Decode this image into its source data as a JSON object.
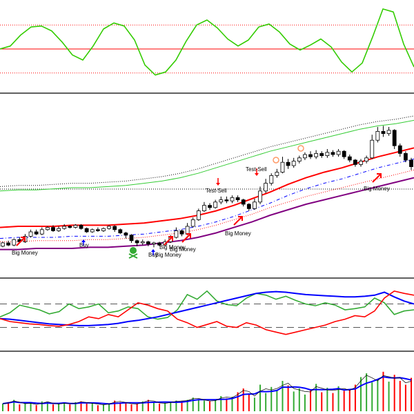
{
  "colors": {
    "background": "#ffffff",
    "pane_border": "#000000",
    "oscillator_line": "#33cc00",
    "oscillator_zero": "#ff0000",
    "oscillator_bands": "#ff0000",
    "candle_up": "#ffffff",
    "candle_down": "#000000",
    "upper_band_dotted": "#000000",
    "middle_band_green": "#33cc33",
    "red_band": "#ff0000",
    "blue_band_dashed": "#0000ff",
    "red_band_dotted": "#ff0000",
    "purple_band": "#800080",
    "signal_red_arrow": "#ff0000",
    "signal_blue_arrow": "#0000ff",
    "skull_icon": "#33aa33",
    "volume_up": "#33aa33",
    "volume_down": "#ff0000",
    "volume_ma": "#0000ff",
    "volume_ma2": "#000000",
    "ind_green": "#33aa33",
    "ind_blue": "#0000ff",
    "ind_red": "#ff0000",
    "ind_levels": "#555555",
    "icon_sell": "#ff9966"
  },
  "chart_data": [
    {
      "type": "line",
      "pane": "oscillator",
      "series": [
        {
          "values": [
            0.0,
            0.3,
            1.4,
            2.2,
            2.3,
            1.8,
            0.7,
            -0.6,
            -1.1,
            0.3,
            2.0,
            2.6,
            2.3,
            0.9,
            -1.6,
            -2.6,
            -2.3,
            -1.1,
            0.8,
            2.4,
            2.9,
            2.1,
            1.0,
            0.3,
            0.9,
            2.2,
            2.5,
            1.7,
            0.5,
            -0.1,
            0.4,
            1.0,
            0.2,
            -1.3,
            -2.3,
            -1.4,
            1.2,
            4.0,
            3.7,
            0.5,
            -1.8
          ]
        }
      ],
      "bands": {
        "upper": 2.4,
        "zero": 0,
        "lower": -2.4
      }
    },
    {
      "type": "candlestick",
      "pane": "price",
      "candles": [
        [
          0.2,
          0.5,
          0.6,
          0.1
        ],
        [
          0.5,
          0.3,
          0.7,
          0.2
        ],
        [
          0.3,
          0.8,
          0.9,
          0.2
        ],
        [
          0.8,
          0.6,
          1.0,
          0.5
        ],
        [
          0.6,
          1.1,
          1.3,
          0.5
        ],
        [
          1.1,
          1.5,
          1.7,
          1.0
        ],
        [
          1.5,
          1.3,
          1.7,
          1.2
        ],
        [
          1.3,
          1.7,
          1.9,
          1.2
        ],
        [
          1.7,
          1.9,
          2.0,
          1.6
        ],
        [
          1.9,
          1.6,
          2.1,
          1.5
        ],
        [
          1.6,
          1.8,
          2.0,
          1.5
        ],
        [
          1.8,
          2.0,
          2.2,
          1.7
        ],
        [
          2.0,
          1.9,
          2.1,
          1.8
        ],
        [
          1.9,
          2.1,
          2.2,
          1.8
        ],
        [
          2.1,
          1.8,
          2.2,
          1.7
        ],
        [
          1.8,
          1.5,
          1.9,
          1.4
        ],
        [
          1.5,
          1.7,
          1.8,
          1.4
        ],
        [
          1.7,
          1.6,
          1.9,
          1.5
        ],
        [
          1.6,
          1.8,
          1.9,
          1.5
        ],
        [
          1.8,
          2.0,
          2.1,
          1.7
        ],
        [
          2.0,
          1.7,
          2.1,
          1.5
        ],
        [
          1.7,
          1.4,
          1.8,
          1.3
        ],
        [
          1.4,
          1.2,
          1.5,
          0.9
        ],
        [
          1.2,
          0.7,
          1.3,
          0.5
        ],
        [
          0.7,
          0.5,
          0.8,
          0.2
        ],
        [
          0.5,
          0.6,
          0.8,
          0.3
        ],
        [
          0.6,
          0.4,
          0.7,
          0.2
        ],
        [
          0.4,
          0.5,
          0.6,
          0.1
        ],
        [
          0.5,
          0.3,
          0.6,
          0.2
        ],
        [
          0.3,
          0.6,
          0.8,
          0.2
        ],
        [
          0.6,
          1.0,
          1.2,
          0.5
        ],
        [
          1.0,
          1.6,
          1.9,
          0.9
        ],
        [
          1.6,
          1.3,
          1.7,
          1.1
        ],
        [
          1.3,
          2.0,
          2.3,
          1.2
        ],
        [
          2.0,
          2.6,
          2.8,
          1.9
        ],
        [
          2.6,
          3.4,
          3.6,
          2.5
        ],
        [
          3.4,
          3.9,
          4.2,
          3.3
        ],
        [
          3.9,
          3.7,
          4.1,
          3.5
        ],
        [
          3.7,
          4.2,
          4.4,
          3.6
        ],
        [
          4.2,
          4.4,
          4.7,
          4.0
        ],
        [
          4.4,
          4.3,
          4.7,
          4.1
        ],
        [
          4.3,
          4.6,
          4.8,
          4.1
        ],
        [
          4.6,
          4.4,
          4.8,
          4.2
        ],
        [
          4.4,
          4.0,
          4.5,
          3.8
        ],
        [
          4.0,
          3.6,
          4.1,
          3.4
        ],
        [
          3.6,
          4.2,
          4.5,
          3.5
        ],
        [
          4.2,
          5.2,
          5.6,
          4.0
        ],
        [
          5.2,
          5.9,
          6.3,
          5.0
        ],
        [
          5.9,
          6.6,
          6.8,
          5.7
        ],
        [
          6.6,
          6.9,
          7.2,
          6.4
        ],
        [
          6.9,
          7.8,
          8.3,
          6.8
        ],
        [
          7.8,
          7.5,
          8.1,
          7.2
        ],
        [
          7.5,
          7.9,
          8.2,
          7.3
        ],
        [
          7.9,
          8.2,
          8.4,
          7.7
        ],
        [
          8.2,
          8.5,
          8.7,
          8.0
        ],
        [
          8.5,
          8.3,
          8.8,
          8.1
        ],
        [
          8.3,
          8.6,
          8.9,
          8.1
        ],
        [
          8.6,
          8.4,
          8.8,
          8.2
        ],
        [
          8.4,
          8.7,
          9.0,
          8.2
        ],
        [
          8.7,
          8.5,
          8.9,
          8.3
        ],
        [
          8.5,
          8.8,
          9.0,
          8.3
        ],
        [
          8.8,
          8.3,
          8.9,
          8.1
        ],
        [
          8.3,
          8.0,
          8.5,
          7.8
        ],
        [
          8.0,
          7.6,
          8.1,
          7.4
        ],
        [
          7.6,
          7.9,
          8.1,
          7.4
        ],
        [
          7.9,
          8.2,
          8.4,
          7.7
        ],
        [
          8.2,
          9.8,
          10.3,
          8.1
        ],
        [
          9.8,
          10.6,
          11.0,
          9.6
        ],
        [
          10.6,
          10.4,
          11.1,
          10.1
        ],
        [
          10.4,
          10.7,
          11.0,
          10.2
        ],
        [
          10.7,
          9.3,
          10.8,
          9.0
        ],
        [
          9.3,
          8.6,
          9.5,
          8.3
        ],
        [
          8.6,
          8.0,
          8.8,
          7.8
        ],
        [
          8.0,
          7.4,
          8.2,
          7.1
        ]
      ],
      "series": [
        {
          "values": [
            3.1,
            3.1,
            3.1,
            3.1,
            3.1,
            3.1,
            3.1,
            3.1,
            3.1,
            3.1,
            3.1,
            3.1,
            3.1,
            3.1,
            3.1,
            3.1,
            3.2,
            3.2,
            3.2,
            3.2
          ]
        },
        {
          "values": [
            3.4,
            3.5,
            3.5,
            3.6,
            3.7,
            3.7,
            3.8,
            3.9,
            4.1,
            4.3,
            4.6,
            5.0,
            5.5,
            6.0,
            6.5,
            7.0,
            7.4,
            7.8,
            8.2,
            8.6,
            9.0,
            9.3,
            9.5,
            9.8
          ]
        },
        {
          "values": [
            1.9,
            2.0,
            2.0,
            2.0,
            2.1,
            2.1,
            2.1,
            2.2,
            2.3,
            2.5,
            2.7,
            3.0,
            3.4,
            3.9,
            4.5,
            5.1,
            5.8,
            6.4,
            6.9,
            7.3,
            7.8,
            8.3,
            8.7,
            9.1
          ]
        },
        {
          "values": [
            1.2,
            1.2,
            1.3,
            1.3,
            1.3,
            1.4,
            1.4,
            1.5,
            1.6,
            1.8,
            2.0,
            2.3,
            2.7,
            3.2,
            3.7,
            4.3,
            4.8,
            5.3,
            5.7,
            6.1,
            6.5,
            6.9,
            7.3,
            7.7
          ]
        }
      ],
      "annotations": [
        "Big Money",
        "Buy",
        "Big Money",
        "Buy",
        "Big Money",
        "Big Money",
        "Big Money",
        "Test-Sell",
        "Test-Sell",
        "Big Money"
      ]
    },
    {
      "type": "line",
      "pane": "indicator",
      "series": [
        {
          "values": [
            48,
            55,
            68,
            64,
            60,
            53,
            57,
            70,
            62,
            65,
            70,
            55,
            58,
            65,
            62,
            48,
            44,
            47,
            60,
            86,
            78,
            92,
            75,
            69,
            67,
            80,
            88,
            85,
            78,
            83,
            76,
            70,
            67,
            72,
            68,
            60,
            62,
            65,
            80,
            72,
            52,
            58,
            60
          ]
        },
        {
          "values": [
            45,
            44,
            42,
            40,
            38,
            36,
            35,
            34,
            33,
            33,
            34,
            35,
            37,
            40,
            42,
            45,
            48,
            52,
            56,
            60,
            64,
            68,
            72,
            76,
            80,
            84,
            88,
            90,
            91,
            90,
            88,
            86,
            85,
            84,
            83,
            82,
            82,
            83,
            85,
            90,
            82,
            75,
            70
          ]
        },
        {
          "values": [
            45,
            40,
            38,
            36,
            35,
            33,
            32,
            35,
            40,
            48,
            45,
            52,
            48,
            60,
            72,
            68,
            62,
            58,
            44,
            38,
            30,
            35,
            40,
            32,
            30,
            38,
            34,
            26,
            22,
            18,
            22,
            26,
            30,
            34,
            40,
            44,
            50,
            48,
            58,
            80,
            92,
            88,
            85
          ]
        }
      ],
      "levels": [
        70,
        30
      ]
    },
    {
      "type": "bar",
      "pane": "volume",
      "values": [
        1.0,
        1.2,
        1.5,
        0.9,
        1.1,
        1.0,
        0.8,
        1.3,
        1.2,
        0.9,
        1.0,
        1.1,
        0.9,
        1.2,
        1.3,
        1.0,
        1.1,
        0.8,
        0.9,
        1.0,
        1.4,
        1.2,
        1.1,
        0.9,
        1.0,
        1.3,
        1.5,
        1.2,
        1.0,
        1.1,
        1.2,
        1.4,
        1.3,
        1.5,
        1.8,
        1.6,
        1.4,
        1.3,
        1.5,
        2.0,
        1.7,
        1.9,
        2.5,
        3.0,
        2.2,
        1.8,
        3.5,
        2.4,
        3.2,
        2.8,
        4.0,
        3.4,
        2.6,
        3.0,
        2.2,
        2.9,
        3.6,
        2.5,
        3.1,
        2.4,
        3.3,
        2.7,
        2.8,
        3.5,
        4.5,
        5.0,
        3.8,
        4.2,
        5.2,
        3.9,
        4.8,
        4.0,
        3.5,
        4.4
      ]
    }
  ]
}
